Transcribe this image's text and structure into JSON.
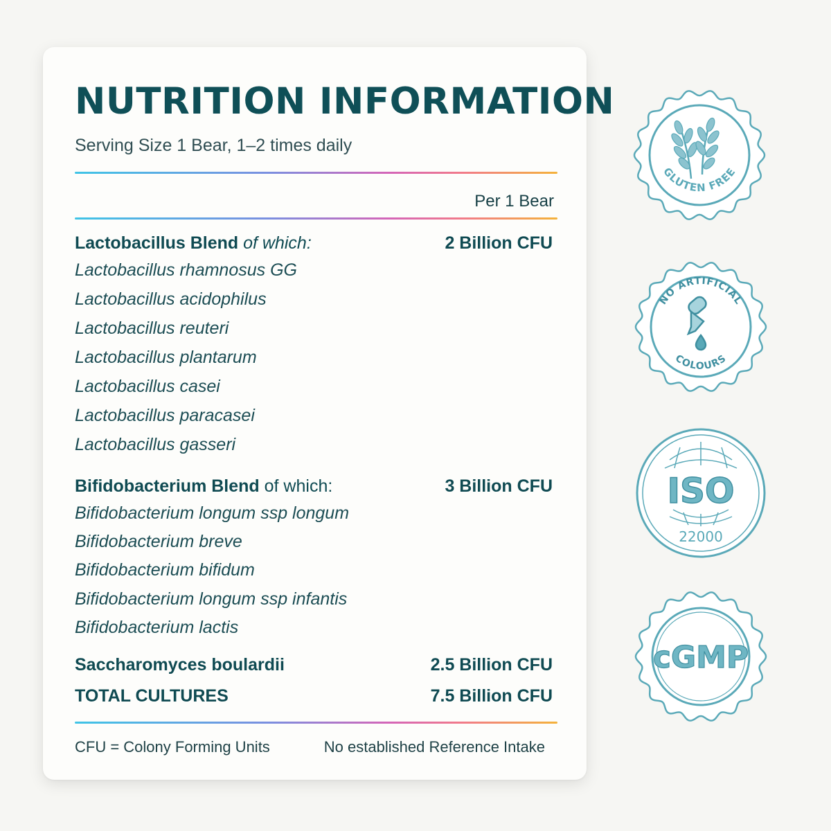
{
  "panel": {
    "title": "NUTRITION INFORMATION",
    "serving": "Serving Size 1 Bear, 1–2 times daily",
    "column_header": "Per 1 Bear"
  },
  "groups": [
    {
      "name": "Lactobacillus Blend",
      "qualifier": "of which:",
      "amount": "2 Billion CFU",
      "species": [
        "Lactobacillus rhamnosus GG",
        "Lactobacillus acidophilus",
        "Lactobacillus reuteri",
        "Lactobacillus plantarum",
        "Lactobacillus casei",
        "Lactobacillus paracasei",
        "Lactobacillus gasseri"
      ]
    },
    {
      "name": "Bifidobacterium Blend",
      "qualifier": "of which:",
      "amount": "3 Billion CFU",
      "species": [
        "Bifidobacterium longum ssp longum",
        "Bifidobacterium breve",
        "Bifidobacterium bifidum",
        "Bifidobacterium longum ssp infantis",
        "Bifidobacterium lactis"
      ]
    }
  ],
  "saccharomyces": {
    "name": "Saccharomyces boulardii",
    "amount": "2.5 Billion CFU"
  },
  "total": {
    "name": "TOTAL CULTURES",
    "amount": "7.5 Billion CFU"
  },
  "footer": {
    "left": "CFU = Colony Forming Units",
    "right": "No established Reference Intake"
  },
  "badges": [
    {
      "icon": "wheat-icon",
      "text": "GLUTEN FREE"
    },
    {
      "icon": "dropper-icon",
      "text_top": "NO ARTIFICIAL",
      "text_bottom": "COLOURS"
    },
    {
      "icon": "globe-icon",
      "text": "ISO",
      "subtext": "22000"
    },
    {
      "icon": "cgmp-seal",
      "text": "cGMP"
    }
  ],
  "colors": {
    "title": "#0f4f57",
    "badge": "#5aa9b8",
    "background": "#f6f6f3"
  }
}
